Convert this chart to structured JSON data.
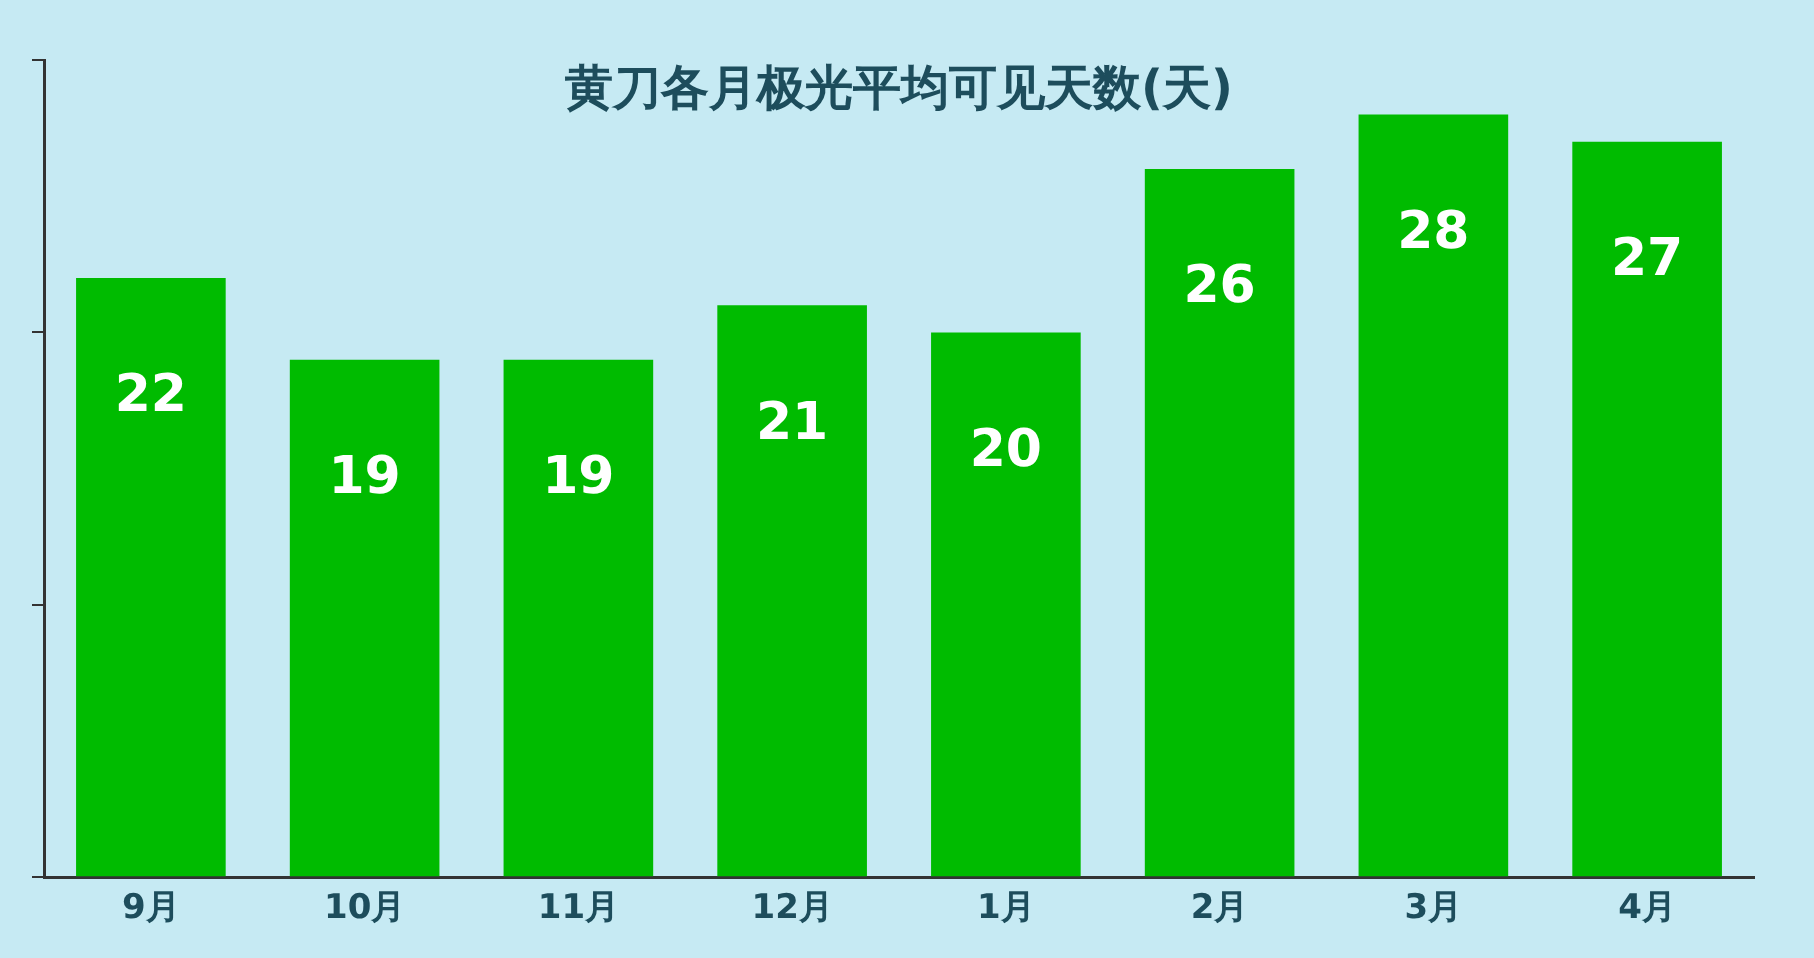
{
  "chart_data": {
    "type": "bar",
    "title": "黄刀各月极光平均可见天数(天)",
    "categories": [
      "9月",
      "10月",
      "11月",
      "12月",
      "1月",
      "2月",
      "3月",
      "4月"
    ],
    "values": [
      22,
      19,
      19,
      21,
      20,
      26,
      28,
      27
    ],
    "color": "#00bb00",
    "ylim": [
      0,
      30
    ],
    "yticks": [
      {
        "value": 0,
        "label": null
      },
      {
        "value": 10,
        "label": null
      },
      {
        "value": 20,
        "label": null
      },
      {
        "value": 30,
        "label": null
      }
    ],
    "tick_labels": "x",
    "grid": false,
    "legend": false,
    "data_labels": true
  }
}
